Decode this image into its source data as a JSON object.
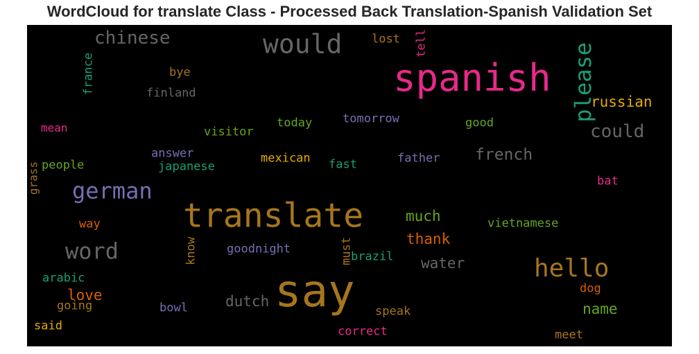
{
  "chart_data": {
    "type": "wordcloud",
    "title": "WordCloud for translate Class - Processed Back Translation-Spanish Validation Set",
    "background": "#000000",
    "palette": "Dark2",
    "words": [
      {
        "text": "say",
        "color": "#a6761d",
        "size": 64,
        "orientation": "horizontal"
      },
      {
        "text": "spanish",
        "color": "#e7298a",
        "size": 54,
        "orientation": "horizontal"
      },
      {
        "text": "translate",
        "color": "#a6761d",
        "size": 48,
        "orientation": "horizontal"
      },
      {
        "text": "would",
        "color": "#666666",
        "size": 38,
        "orientation": "horizontal"
      },
      {
        "text": "hello",
        "color": "#a6761d",
        "size": 36,
        "orientation": "horizontal"
      },
      {
        "text": "please",
        "color": "#1b9e77",
        "size": 32,
        "orientation": "vertical"
      },
      {
        "text": "german",
        "color": "#7570b3",
        "size": 32,
        "orientation": "horizontal"
      },
      {
        "text": "word",
        "color": "#666666",
        "size": 32,
        "orientation": "horizontal"
      },
      {
        "text": "chinese",
        "color": "#666666",
        "size": 26,
        "orientation": "horizontal"
      },
      {
        "text": "could",
        "color": "#666666",
        "size": 26,
        "orientation": "horizontal"
      },
      {
        "text": "french",
        "color": "#666666",
        "size": 23,
        "orientation": "horizontal"
      },
      {
        "text": "dutch",
        "color": "#666666",
        "size": 21,
        "orientation": "horizontal"
      },
      {
        "text": "russian",
        "color": "#e6ab02",
        "size": 21,
        "orientation": "horizontal"
      },
      {
        "text": "much",
        "color": "#66a61e",
        "size": 21,
        "orientation": "horizontal"
      },
      {
        "text": "thank",
        "color": "#d95f02",
        "size": 21,
        "orientation": "horizontal"
      },
      {
        "text": "water",
        "color": "#666666",
        "size": 21,
        "orientation": "horizontal"
      },
      {
        "text": "love",
        "color": "#d95f02",
        "size": 21,
        "orientation": "horizontal"
      },
      {
        "text": "name",
        "color": "#66a61e",
        "size": 21,
        "orientation": "horizontal"
      },
      {
        "text": "lost",
        "color": "#a6761d",
        "size": 17,
        "orientation": "horizontal"
      },
      {
        "text": "tell",
        "color": "#e7298a",
        "size": 17,
        "orientation": "vertical"
      },
      {
        "text": "france",
        "color": "#1b9e77",
        "size": 17,
        "orientation": "vertical"
      },
      {
        "text": "bye",
        "color": "#a6761d",
        "size": 17,
        "orientation": "horizontal"
      },
      {
        "text": "finland",
        "color": "#666666",
        "size": 17,
        "orientation": "horizontal"
      },
      {
        "text": "mean",
        "color": "#e7298a",
        "size": 16,
        "orientation": "horizontal"
      },
      {
        "text": "visitor",
        "color": "#66a61e",
        "size": 17,
        "orientation": "horizontal"
      },
      {
        "text": "today",
        "color": "#66a61e",
        "size": 17,
        "orientation": "horizontal"
      },
      {
        "text": "tomorrow",
        "color": "#7570b3",
        "size": 17,
        "orientation": "horizontal"
      },
      {
        "text": "good",
        "color": "#66a61e",
        "size": 17,
        "orientation": "horizontal"
      },
      {
        "text": "answer",
        "color": "#7570b3",
        "size": 17,
        "orientation": "horizontal"
      },
      {
        "text": "japanese",
        "color": "#1b9e77",
        "size": 17,
        "orientation": "horizontal"
      },
      {
        "text": "mexican",
        "color": "#e6ab02",
        "size": 17,
        "orientation": "horizontal"
      },
      {
        "text": "fast",
        "color": "#1b9e77",
        "size": 17,
        "orientation": "horizontal"
      },
      {
        "text": "father",
        "color": "#7570b3",
        "size": 17,
        "orientation": "horizontal"
      },
      {
        "text": "grass",
        "color": "#a6761d",
        "size": 16,
        "orientation": "vertical"
      },
      {
        "text": "people",
        "color": "#66a61e",
        "size": 17,
        "orientation": "horizontal"
      },
      {
        "text": "bat",
        "color": "#e7298a",
        "size": 17,
        "orientation": "horizontal"
      },
      {
        "text": "way",
        "color": "#d95f02",
        "size": 17,
        "orientation": "horizontal"
      },
      {
        "text": "vietnamese",
        "color": "#66a61e",
        "size": 17,
        "orientation": "horizontal"
      },
      {
        "text": "know",
        "color": "#a6761d",
        "size": 17,
        "orientation": "vertical"
      },
      {
        "text": "goodnight",
        "color": "#7570b3",
        "size": 17,
        "orientation": "horizontal"
      },
      {
        "text": "must",
        "color": "#a6761d",
        "size": 17,
        "orientation": "vertical"
      },
      {
        "text": "brazil",
        "color": "#1b9e77",
        "size": 17,
        "orientation": "horizontal"
      },
      {
        "text": "arabic",
        "color": "#1b9e77",
        "size": 17,
        "orientation": "horizontal"
      },
      {
        "text": "going",
        "color": "#a6761d",
        "size": 17,
        "orientation": "horizontal"
      },
      {
        "text": "bowl",
        "color": "#7570b3",
        "size": 17,
        "orientation": "horizontal"
      },
      {
        "text": "dog",
        "color": "#d95f02",
        "size": 17,
        "orientation": "horizontal"
      },
      {
        "text": "said",
        "color": "#e6ab02",
        "size": 17,
        "orientation": "horizontal"
      },
      {
        "text": "speak",
        "color": "#a6761d",
        "size": 17,
        "orientation": "horizontal"
      },
      {
        "text": "correct",
        "color": "#e7298a",
        "size": 17,
        "orientation": "horizontal"
      },
      {
        "text": "meet",
        "color": "#a6761d",
        "size": 17,
        "orientation": "horizontal"
      }
    ]
  }
}
